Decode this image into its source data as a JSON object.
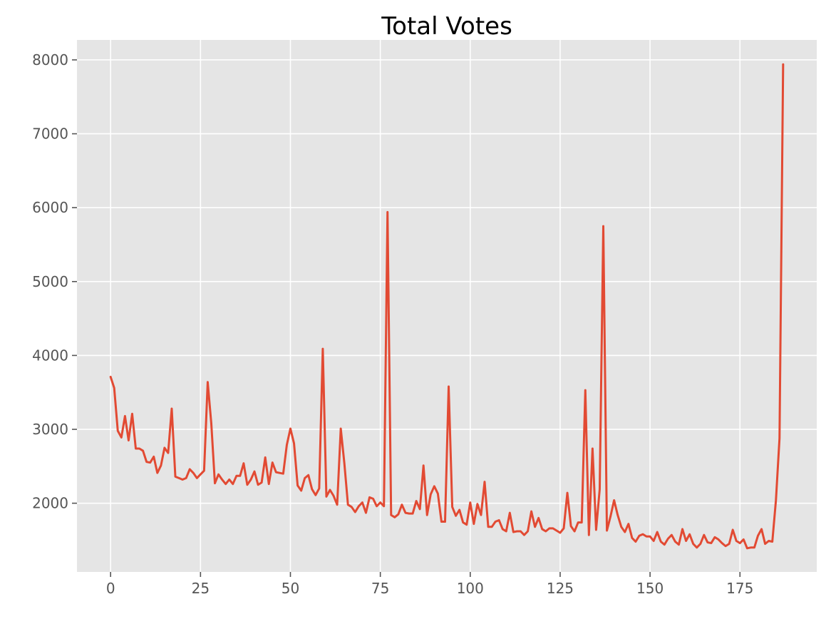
{
  "chart_data": {
    "type": "line",
    "title": "Total Votes",
    "xlabel": "",
    "ylabel": "",
    "xlim": [
      -9.35,
      196.35
    ],
    "ylim": [
      1070,
      8270
    ],
    "xticks": [
      0,
      25,
      50,
      75,
      100,
      125,
      150,
      175
    ],
    "yticks": [
      2000,
      3000,
      4000,
      5000,
      6000,
      7000,
      8000
    ],
    "grid": true,
    "colors": {
      "background": "#e5e5e5",
      "line": "#e24a33"
    },
    "series": [
      {
        "values": [
          3710,
          3560,
          2980,
          2890,
          3180,
          2850,
          3210,
          2740,
          2740,
          2710,
          2560,
          2550,
          2630,
          2410,
          2510,
          2750,
          2680,
          3280,
          2360,
          2340,
          2320,
          2340,
          2460,
          2410,
          2340,
          2390,
          2440,
          3640,
          3080,
          2270,
          2390,
          2320,
          2260,
          2320,
          2260,
          2370,
          2370,
          2540,
          2250,
          2320,
          2430,
          2250,
          2280,
          2620,
          2260,
          2550,
          2420,
          2410,
          2400,
          2790,
          3010,
          2810,
          2240,
          2170,
          2340,
          2380,
          2190,
          2110,
          2200,
          4090,
          2090,
          2180,
          2100,
          1980,
          3010,
          2540,
          1980,
          1950,
          1880,
          1960,
          2010,
          1870,
          2080,
          2060,
          1960,
          2010,
          1960,
          5940,
          1840,
          1810,
          1850,
          1980,
          1870,
          1860,
          1860,
          2030,
          1920,
          2510,
          1840,
          2120,
          2230,
          2130,
          1750,
          1750,
          3580,
          1950,
          1830,
          1910,
          1740,
          1710,
          2010,
          1720,
          1990,
          1840,
          2290,
          1680,
          1680,
          1750,
          1770,
          1650,
          1620,
          1870,
          1610,
          1620,
          1620,
          1570,
          1620,
          1890,
          1680,
          1800,
          1650,
          1620,
          1660,
          1660,
          1630,
          1600,
          1660,
          2140,
          1690,
          1620,
          1740,
          1740,
          3530,
          1570,
          2740,
          1640,
          2190,
          5750,
          1630,
          1820,
          2040,
          1840,
          1680,
          1610,
          1720,
          1530,
          1480,
          1560,
          1580,
          1550,
          1550,
          1490,
          1610,
          1480,
          1440,
          1520,
          1570,
          1480,
          1440,
          1650,
          1490,
          1580,
          1450,
          1400,
          1450,
          1570,
          1470,
          1460,
          1540,
          1510,
          1460,
          1420,
          1450,
          1640,
          1490,
          1460,
          1510,
          1390,
          1400,
          1400,
          1560,
          1650,
          1450,
          1490,
          1480,
          2040,
          2880,
          7940
        ]
      }
    ]
  }
}
